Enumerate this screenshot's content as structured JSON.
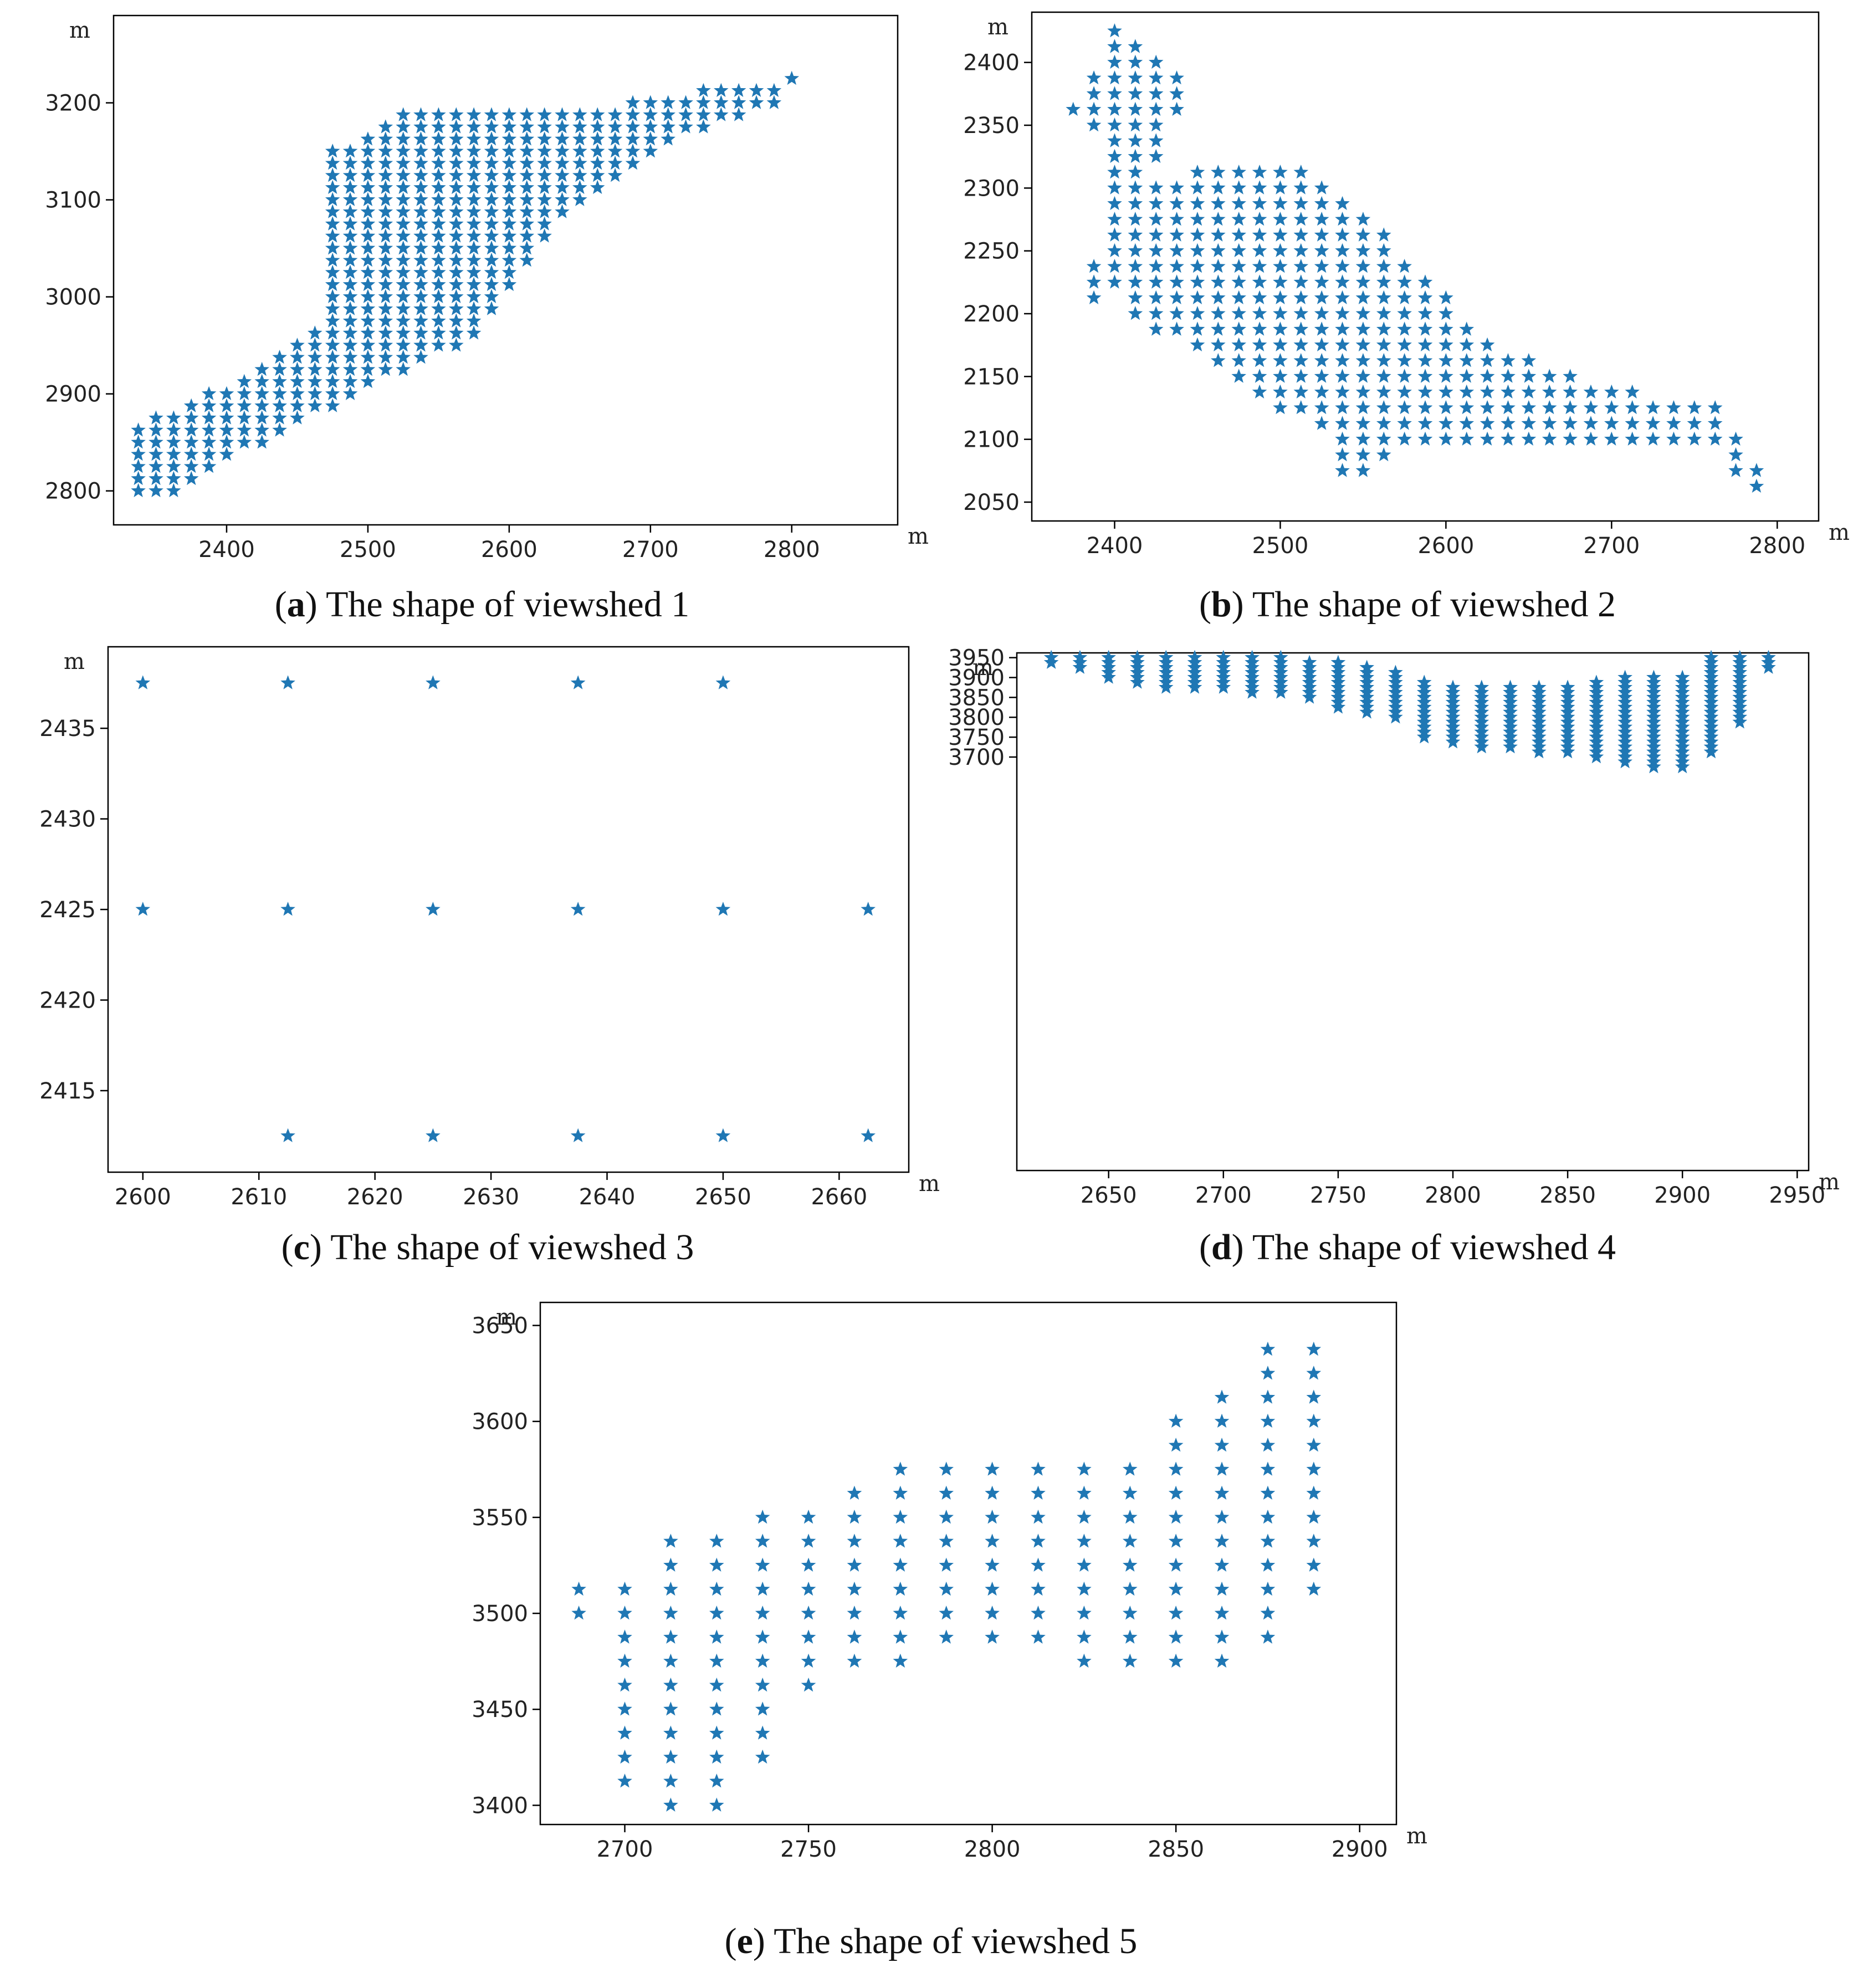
{
  "figure": {
    "colors": {
      "marker": "#1f77b4",
      "frame": "#000000",
      "background": "#ffffff"
    }
  },
  "chart_data": [
    {
      "type": "scatter",
      "caption_letter": "a",
      "caption_text": "The shape of viewshed 1",
      "marker": "star",
      "xlabel": "m",
      "ylabel": "m",
      "xlim": [
        2320,
        2875
      ],
      "ylim": [
        2765,
        3290
      ],
      "xticks": [
        2400,
        2500,
        2600,
        2700,
        2800
      ],
      "yticks": [
        2800,
        2900,
        3000,
        3100,
        3200
      ],
      "grid": false,
      "legend": false,
      "generator": {
        "step": 12.5,
        "polygon": [
          [
            2335,
            2790
          ],
          [
            2335,
            2870
          ],
          [
            2395,
            2905
          ],
          [
            2450,
            2958
          ],
          [
            2475,
            2985
          ],
          [
            2475,
            3150
          ],
          [
            2500,
            3168
          ],
          [
            2525,
            3192
          ],
          [
            2650,
            3192
          ],
          [
            2735,
            3215
          ],
          [
            2810,
            3228
          ],
          [
            2850,
            3268
          ],
          [
            2815,
            3240
          ],
          [
            2790,
            3200
          ],
          [
            2720,
            3160
          ],
          [
            2640,
            3080
          ],
          [
            2600,
            3010
          ],
          [
            2575,
            2955
          ],
          [
            2545,
            2935
          ],
          [
            2480,
            2890
          ],
          [
            2440,
            2860
          ],
          [
            2405,
            2835
          ],
          [
            2380,
            2810
          ],
          [
            2365,
            2790
          ]
        ]
      },
      "points": []
    },
    {
      "type": "scatter",
      "caption_letter": "b",
      "caption_text": "The shape of viewshed 2",
      "marker": "star",
      "xlabel": "m",
      "ylabel": "m",
      "xlim": [
        2350,
        2825
      ],
      "ylim": [
        2035,
        2440
      ],
      "xticks": [
        2400,
        2500,
        2600,
        2700,
        2800
      ],
      "yticks": [
        2050,
        2100,
        2150,
        2200,
        2250,
        2300,
        2350,
        2400
      ],
      "grid": false,
      "legend": false,
      "generator": {
        "step": 12.5,
        "polygon": [
          [
            2372,
            2355
          ],
          [
            2400,
            2428
          ],
          [
            2445,
            2380
          ],
          [
            2430,
            2340
          ],
          [
            2420,
            2305
          ],
          [
            2500,
            2325
          ],
          [
            2550,
            2280
          ],
          [
            2625,
            2180
          ],
          [
            2700,
            2140
          ],
          [
            2765,
            2130
          ],
          [
            2800,
            2052
          ],
          [
            2780,
            2052
          ],
          [
            2765,
            2100
          ],
          [
            2590,
            2100
          ],
          [
            2560,
            2080
          ],
          [
            2540,
            2060
          ],
          [
            2520,
            2120
          ],
          [
            2510,
            2115
          ],
          [
            2460,
            2160
          ],
          [
            2420,
            2190
          ],
          [
            2400,
            2215
          ],
          [
            2385,
            2210
          ],
          [
            2395,
            2335
          ]
        ]
      },
      "points": []
    },
    {
      "type": "scatter",
      "caption_letter": "c",
      "caption_text": "The shape of viewshed 3",
      "marker": "star",
      "xlabel": "m",
      "ylabel": "m",
      "xlim": [
        2597,
        2666
      ],
      "ylim": [
        2410.5,
        2439.5
      ],
      "xticks": [
        2600,
        2610,
        2620,
        2630,
        2640,
        2650,
        2660
      ],
      "yticks": [
        2415,
        2420,
        2425,
        2430,
        2435
      ],
      "grid": false,
      "legend": false,
      "points": [
        [
          2600,
          2437.5
        ],
        [
          2612.5,
          2437.5
        ],
        [
          2625,
          2437.5
        ],
        [
          2637.5,
          2437.5
        ],
        [
          2650,
          2437.5
        ],
        [
          2600,
          2425
        ],
        [
          2612.5,
          2425
        ],
        [
          2625,
          2425
        ],
        [
          2637.5,
          2425
        ],
        [
          2650,
          2425
        ],
        [
          2662.5,
          2425
        ],
        [
          2612.5,
          2412.5
        ],
        [
          2625,
          2412.5
        ],
        [
          2637.5,
          2412.5
        ],
        [
          2650,
          2412.5
        ],
        [
          2662.5,
          2412.5
        ]
      ]
    },
    {
      "type": "scatter",
      "caption_letter": "d",
      "caption_text": "The shape of viewshed 4",
      "marker": "star",
      "xlabel": "m",
      "ylabel": "m",
      "xlim": [
        2610,
        2955
      ],
      "ylim": [
        2660,
        3962
      ],
      "xticks": [
        2650,
        2700,
        2750,
        2800,
        2850,
        2900,
        2950
      ],
      "yticks": [
        3700,
        3750,
        3800,
        3850,
        3900,
        3950
      ],
      "grid": false,
      "legend": false,
      "generator": {
        "step": 12.5,
        "polygon": [
          [
            2625,
            3952
          ],
          [
            2730,
            3952
          ],
          [
            2765,
            3930
          ],
          [
            2800,
            3880
          ],
          [
            2850,
            3880
          ],
          [
            2875,
            3905
          ],
          [
            2912,
            3905
          ],
          [
            2912,
            3952
          ],
          [
            2940,
            3952
          ],
          [
            2930,
            3820
          ],
          [
            2915,
            3715
          ],
          [
            2900,
            3670
          ],
          [
            2880,
            3670
          ],
          [
            2855,
            3700
          ],
          [
            2825,
            3720
          ],
          [
            2790,
            3730
          ],
          [
            2780,
            3790
          ],
          [
            2755,
            3810
          ],
          [
            2740,
            3835
          ],
          [
            2720,
            3860
          ],
          [
            2670,
            3870
          ],
          [
            2625,
            3935
          ]
        ]
      },
      "points": []
    },
    {
      "type": "scatter",
      "caption_letter": "e",
      "caption_text": "The shape of viewshed 5",
      "marker": "star",
      "xlabel": "m",
      "ylabel": "m",
      "xlim": [
        2677,
        2910
      ],
      "ylim": [
        3390,
        3662
      ],
      "xticks": [
        2700,
        2750,
        2800,
        2850,
        2900
      ],
      "yticks": [
        3400,
        3450,
        3500,
        3550,
        3600,
        3650
      ],
      "grid": false,
      "legend": false,
      "generator": {
        "step": 12.5,
        "polygon": [
          [
            2685,
            3500
          ],
          [
            2685,
            3515
          ],
          [
            2700,
            3515
          ],
          [
            2712,
            3540
          ],
          [
            2737,
            3552
          ],
          [
            2762,
            3565
          ],
          [
            2775,
            3577
          ],
          [
            2840,
            3577
          ],
          [
            2850,
            3600
          ],
          [
            2875,
            3640
          ],
          [
            2900,
            3652
          ],
          [
            2900,
            3610
          ],
          [
            2888,
            3510
          ],
          [
            2875,
            3485
          ],
          [
            2860,
            3470
          ],
          [
            2835,
            3470
          ],
          [
            2800,
            3485
          ],
          [
            2775,
            3470
          ],
          [
            2740,
            3455
          ],
          [
            2737,
            3410
          ],
          [
            2725,
            3398
          ],
          [
            2712,
            3398
          ],
          [
            2700,
            3410
          ],
          [
            2700,
            3495
          ]
        ]
      },
      "points": []
    }
  ]
}
